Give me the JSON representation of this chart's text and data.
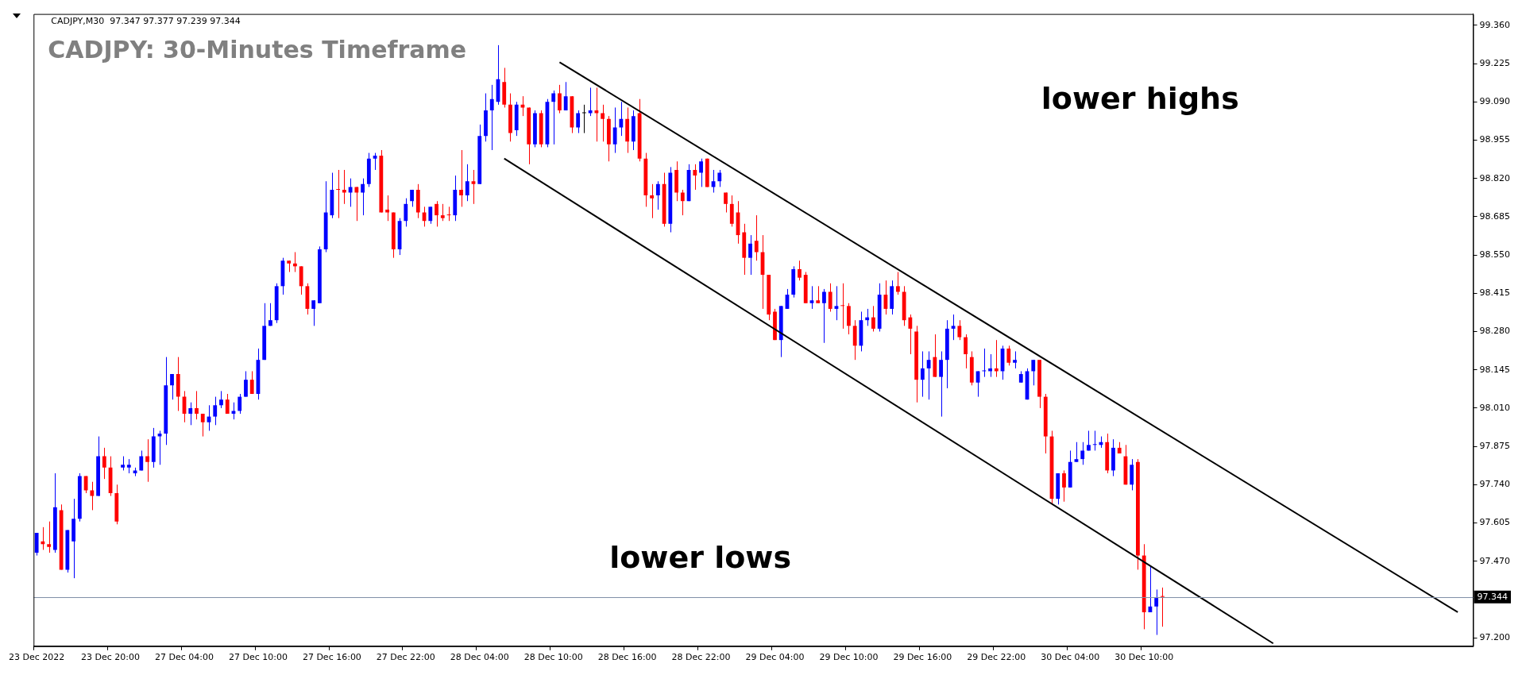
{
  "chart_data": {
    "type": "candlestick",
    "title": "CADJPY: 30-Minutes Timeframe",
    "annotations": [
      "CADJPY,M30  97.347 97.377 97.239 97.344",
      "lower highs",
      "lower lows"
    ],
    "categories": [
      "23 Dec 2022",
      null,
      null,
      null,
      null,
      null,
      null,
      null,
      null,
      null,
      null,
      null,
      "23 Dec 20:00",
      null,
      null,
      null,
      null,
      null,
      null,
      null,
      null,
      null,
      null,
      null,
      "27 Dec 04:00",
      null,
      null,
      null,
      null,
      null,
      null,
      null,
      null,
      null,
      null,
      null,
      "27 Dec 10:00",
      null,
      null,
      null,
      null,
      null,
      null,
      null,
      null,
      null,
      null,
      null,
      "27 Dec 16:00",
      null,
      null,
      null,
      null,
      null,
      null,
      null,
      null,
      null,
      null,
      null,
      "27 Dec 22:00",
      null,
      null,
      null,
      null,
      null,
      null,
      null,
      null,
      null,
      null,
      null,
      "28 Dec 04:00",
      null,
      null,
      null,
      null,
      null,
      null,
      null,
      null,
      null,
      null,
      null,
      "28 Dec 10:00",
      null,
      null,
      null,
      null,
      null,
      null,
      null,
      null,
      null,
      null,
      null,
      "28 Dec 16:00",
      null,
      null,
      null,
      null,
      null,
      null,
      null,
      null,
      null,
      null,
      null,
      "28 Dec 22:00",
      null,
      null,
      null,
      null,
      null,
      null,
      null,
      null,
      null,
      null,
      null,
      "29 Dec 04:00",
      null,
      null,
      null,
      null,
      null,
      null,
      null,
      null,
      null,
      null,
      null,
      "29 Dec 10:00",
      null,
      null,
      null,
      null,
      null,
      null,
      null,
      null,
      null,
      null,
      null,
      "29 Dec 16:00",
      null,
      null,
      null,
      null,
      null,
      null,
      null,
      null,
      null,
      null,
      null,
      "29 Dec 22:00",
      null,
      null,
      null,
      null,
      null,
      null,
      null,
      null,
      null,
      null,
      null,
      "30 Dec 04:00",
      null,
      null,
      null,
      null,
      null,
      null,
      null,
      null,
      null,
      null,
      null,
      "30 Dec 10:00",
      null,
      null,
      null,
      null,
      null,
      null,
      null,
      null,
      null,
      null,
      null,
      null,
      null,
      null,
      null,
      null,
      null,
      null,
      null,
      null,
      null,
      null,
      null,
      null,
      null,
      null,
      null,
      null,
      null,
      null,
      null,
      null,
      null,
      null,
      null,
      null,
      null,
      null,
      null,
      null,
      null,
      null,
      null,
      null,
      null,
      null,
      null,
      null,
      null,
      null,
      null,
      null,
      null
    ],
    "ohlc": [
      [
        97.5,
        97.57,
        97.49,
        97.57
      ],
      [
        97.54,
        97.59,
        97.51,
        97.53
      ],
      [
        97.53,
        97.61,
        97.5,
        97.52
      ],
      [
        97.51,
        97.78,
        97.5,
        97.66
      ],
      [
        97.65,
        97.67,
        97.44,
        97.44
      ],
      [
        97.44,
        97.58,
        97.43,
        97.58
      ],
      [
        97.54,
        97.69,
        97.41,
        97.62
      ],
      [
        97.62,
        97.78,
        97.61,
        97.77
      ],
      [
        97.77,
        97.77,
        97.71,
        97.72
      ],
      [
        97.72,
        97.75,
        97.65,
        97.7
      ],
      [
        97.7,
        97.91,
        97.7,
        97.84
      ],
      [
        97.84,
        97.87,
        97.76,
        97.8
      ],
      [
        97.8,
        97.84,
        97.7,
        97.71
      ],
      [
        97.71,
        97.74,
        97.6,
        97.61
      ],
      [
        97.8,
        97.84,
        97.79,
        97.81
      ],
      [
        97.8,
        97.83,
        97.78,
        97.81
      ],
      [
        97.78,
        97.8,
        97.77,
        97.79
      ],
      [
        97.79,
        97.86,
        97.79,
        97.84
      ],
      [
        97.84,
        97.9,
        97.75,
        97.82
      ],
      [
        97.82,
        97.94,
        97.8,
        97.91
      ],
      [
        97.91,
        97.93,
        97.81,
        97.92
      ],
      [
        97.92,
        98.19,
        97.88,
        98.09
      ],
      [
        98.09,
        98.13,
        98.04,
        98.13
      ],
      [
        98.13,
        98.19,
        98.0,
        98.05
      ],
      [
        98.05,
        98.07,
        97.96,
        97.99
      ],
      [
        97.99,
        98.03,
        97.95,
        98.01
      ],
      [
        98.01,
        98.07,
        97.97,
        97.99
      ],
      [
        97.99,
        97.99,
        97.91,
        97.96
      ],
      [
        97.96,
        98.02,
        97.93,
        97.98
      ],
      [
        97.98,
        98.05,
        97.95,
        98.02
      ],
      [
        98.02,
        98.07,
        98.01,
        98.04
      ],
      [
        98.04,
        98.06,
        97.99,
        97.99
      ],
      [
        97.99,
        98.03,
        97.97,
        98.0
      ],
      [
        98.0,
        98.06,
        97.99,
        98.05
      ],
      [
        98.05,
        98.14,
        98.05,
        98.11
      ],
      [
        98.11,
        98.14,
        98.06,
        98.06
      ],
      [
        98.06,
        98.22,
        98.04,
        98.18
      ],
      [
        98.18,
        98.38,
        98.18,
        98.3
      ],
      [
        98.3,
        98.38,
        98.3,
        98.32
      ],
      [
        98.32,
        98.45,
        98.31,
        98.44
      ],
      [
        98.44,
        98.54,
        98.41,
        98.53
      ],
      [
        98.53,
        98.53,
        98.49,
        98.52
      ],
      [
        98.52,
        98.56,
        98.49,
        98.51
      ],
      [
        98.51,
        98.51,
        98.41,
        98.44
      ],
      [
        98.44,
        98.45,
        98.34,
        98.36
      ],
      [
        98.36,
        98.39,
        98.3,
        98.39
      ],
      [
        98.38,
        98.58,
        98.38,
        98.57
      ],
      [
        98.57,
        98.81,
        98.56,
        98.7
      ],
      [
        98.69,
        98.84,
        98.68,
        98.78
      ],
      [
        98.78,
        98.85,
        98.68,
        98.78
      ],
      [
        98.78,
        98.85,
        98.73,
        98.77
      ],
      [
        98.77,
        98.82,
        98.72,
        98.79
      ],
      [
        98.79,
        98.79,
        98.67,
        98.77
      ],
      [
        98.77,
        98.82,
        98.69,
        98.8
      ],
      [
        98.8,
        98.91,
        98.79,
        98.89
      ],
      [
        98.89,
        98.91,
        98.85,
        98.9
      ],
      [
        98.9,
        98.92,
        98.7,
        98.7
      ],
      [
        98.71,
        98.76,
        98.67,
        98.7
      ],
      [
        98.7,
        98.7,
        98.54,
        98.57
      ],
      [
        98.57,
        98.68,
        98.55,
        98.67
      ],
      [
        98.67,
        98.75,
        98.65,
        98.73
      ],
      [
        98.74,
        98.78,
        98.72,
        98.78
      ],
      [
        98.78,
        98.8,
        98.68,
        98.7
      ],
      [
        98.7,
        98.72,
        98.65,
        98.67
      ],
      [
        98.67,
        98.72,
        98.66,
        98.72
      ],
      [
        98.73,
        98.74,
        98.65,
        98.69
      ],
      [
        98.69,
        98.73,
        98.67,
        98.68
      ],
      [
        98.69,
        98.72,
        98.67,
        98.69
      ],
      [
        98.69,
        98.83,
        98.67,
        98.78
      ],
      [
        98.78,
        98.92,
        98.72,
        98.76
      ],
      [
        98.76,
        98.87,
        98.74,
        98.81
      ],
      [
        98.81,
        98.85,
        98.73,
        98.8
      ],
      [
        98.8,
        99.01,
        98.8,
        98.97
      ],
      [
        98.97,
        99.12,
        98.95,
        99.06
      ],
      [
        99.06,
        99.15,
        98.92,
        99.1
      ],
      [
        99.09,
        99.29,
        99.08,
        99.17
      ],
      [
        99.16,
        99.21,
        99.07,
        99.08
      ],
      [
        99.08,
        99.12,
        98.95,
        98.98
      ],
      [
        98.99,
        99.09,
        98.97,
        99.08
      ],
      [
        99.08,
        99.11,
        99.04,
        99.07
      ],
      [
        99.07,
        99.07,
        98.87,
        98.94
      ],
      [
        98.94,
        99.06,
        98.93,
        99.05
      ],
      [
        99.05,
        99.06,
        98.93,
        98.94
      ],
      [
        98.94,
        99.1,
        98.93,
        99.09
      ],
      [
        99.09,
        99.13,
        98.94,
        99.12
      ],
      [
        99.12,
        99.15,
        99.05,
        99.06
      ],
      [
        99.06,
        99.16,
        99.06,
        99.11
      ],
      [
        99.11,
        99.11,
        98.98,
        99.0
      ],
      [
        99.0,
        99.06,
        98.98,
        99.05
      ],
      [
        99.05,
        99.08,
        98.98,
        99.05
      ],
      [
        99.05,
        99.14,
        99.04,
        99.06
      ],
      [
        99.06,
        99.14,
        98.95,
        99.05
      ],
      [
        99.05,
        99.08,
        98.95,
        99.03
      ],
      [
        99.03,
        99.04,
        98.88,
        98.94
      ],
      [
        98.94,
        99.07,
        98.91,
        99.0
      ],
      [
        99.0,
        99.09,
        98.97,
        99.03
      ],
      [
        99.03,
        99.07,
        98.91,
        98.95
      ],
      [
        98.95,
        99.06,
        98.92,
        99.04
      ],
      [
        99.05,
        99.1,
        98.88,
        98.89
      ],
      [
        98.89,
        98.91,
        98.72,
        98.76
      ],
      [
        98.76,
        98.8,
        98.68,
        98.75
      ],
      [
        98.76,
        98.81,
        98.71,
        98.8
      ],
      [
        98.8,
        98.84,
        98.65,
        98.66
      ],
      [
        98.66,
        98.86,
        98.63,
        98.84
      ],
      [
        98.85,
        98.88,
        98.74,
        98.77
      ],
      [
        98.77,
        98.78,
        98.69,
        98.74
      ],
      [
        98.74,
        98.87,
        98.74,
        98.85
      ],
      [
        98.85,
        98.87,
        98.78,
        98.83
      ],
      [
        98.84,
        98.89,
        98.79,
        98.88
      ],
      [
        98.89,
        98.89,
        98.79,
        98.79
      ],
      [
        98.79,
        98.85,
        98.77,
        98.81
      ],
      [
        98.81,
        98.85,
        98.79,
        98.84
      ],
      [
        98.77,
        98.77,
        98.7,
        98.73
      ],
      [
        98.73,
        98.76,
        98.65,
        98.66
      ],
      [
        98.7,
        98.74,
        98.59,
        98.62
      ],
      [
        98.63,
        98.66,
        98.48,
        98.54
      ],
      [
        98.54,
        98.62,
        98.48,
        98.59
      ],
      [
        98.6,
        98.69,
        98.53,
        98.56
      ],
      [
        98.56,
        98.62,
        98.36,
        98.48
      ],
      [
        98.48,
        98.48,
        98.32,
        98.34
      ],
      [
        98.35,
        98.36,
        98.25,
        98.25
      ],
      [
        98.25,
        98.37,
        98.19,
        98.37
      ],
      [
        98.36,
        98.43,
        98.36,
        98.41
      ],
      [
        98.41,
        98.51,
        98.4,
        98.5
      ],
      [
        98.5,
        98.53,
        98.46,
        98.47
      ],
      [
        98.48,
        98.49,
        98.38,
        98.38
      ],
      [
        98.38,
        98.44,
        98.36,
        98.39
      ],
      [
        98.39,
        98.44,
        98.38,
        98.38
      ],
      [
        98.38,
        98.43,
        98.24,
        98.42
      ],
      [
        98.42,
        98.45,
        98.35,
        98.36
      ],
      [
        98.36,
        98.44,
        98.32,
        98.37
      ],
      [
        98.37,
        98.45,
        98.29,
        98.37
      ],
      [
        98.37,
        98.38,
        98.27,
        98.3
      ],
      [
        98.3,
        98.32,
        98.18,
        98.23
      ],
      [
        98.23,
        98.35,
        98.21,
        98.32
      ],
      [
        98.32,
        98.36,
        98.3,
        98.33
      ],
      [
        98.33,
        98.37,
        98.28,
        98.29
      ],
      [
        98.29,
        98.45,
        98.28,
        98.41
      ],
      [
        98.41,
        98.46,
        98.34,
        98.36
      ],
      [
        98.36,
        98.46,
        98.34,
        98.44
      ],
      [
        98.44,
        98.49,
        98.41,
        98.42
      ],
      [
        98.42,
        98.44,
        98.3,
        98.32
      ],
      [
        98.33,
        98.34,
        98.2,
        98.29
      ],
      [
        98.28,
        98.3,
        98.03,
        98.11
      ],
      [
        98.11,
        98.21,
        98.05,
        98.15
      ],
      [
        98.15,
        98.21,
        98.04,
        98.18
      ],
      [
        98.19,
        98.27,
        98.12,
        98.12
      ],
      [
        98.12,
        98.21,
        97.98,
        98.18
      ],
      [
        98.18,
        98.32,
        98.08,
        98.29
      ],
      [
        98.29,
        98.34,
        98.25,
        98.3
      ],
      [
        98.3,
        98.32,
        98.25,
        98.26
      ],
      [
        98.26,
        98.27,
        98.15,
        98.2
      ],
      [
        98.19,
        98.21,
        98.09,
        98.1
      ],
      [
        98.1,
        98.14,
        98.05,
        98.14
      ],
      [
        98.14,
        98.22,
        98.12,
        98.14
      ],
      [
        98.14,
        98.2,
        98.12,
        98.15
      ],
      [
        98.15,
        98.25,
        98.12,
        98.14
      ],
      [
        98.14,
        98.23,
        98.11,
        98.22
      ],
      [
        98.22,
        98.23,
        98.16,
        98.17
      ],
      [
        98.17,
        98.21,
        98.15,
        98.18
      ],
      [
        98.1,
        98.14,
        98.1,
        98.13
      ],
      [
        98.04,
        98.15,
        98.04,
        98.14
      ],
      [
        98.14,
        98.18,
        98.09,
        98.18
      ],
      [
        98.18,
        98.18,
        98.01,
        98.05
      ],
      [
        98.05,
        98.06,
        97.85,
        97.91
      ],
      [
        97.91,
        97.93,
        97.67,
        97.69
      ],
      [
        97.69,
        97.78,
        97.67,
        97.78
      ],
      [
        97.78,
        97.79,
        97.68,
        97.73
      ],
      [
        97.73,
        97.86,
        97.73,
        97.82
      ],
      [
        97.82,
        97.89,
        97.82,
        97.83
      ],
      [
        97.83,
        97.89,
        97.81,
        97.86
      ],
      [
        97.86,
        97.93,
        97.86,
        97.88
      ],
      [
        97.88,
        97.93,
        97.86,
        97.88
      ],
      [
        97.88,
        97.91,
        97.87,
        97.89
      ],
      [
        97.89,
        97.92,
        97.78,
        97.79
      ],
      [
        97.79,
        97.9,
        97.77,
        97.87
      ],
      [
        97.87,
        97.89,
        97.85,
        97.85
      ],
      [
        97.84,
        97.88,
        97.74,
        97.74
      ],
      [
        97.74,
        97.83,
        97.72,
        97.81
      ],
      [
        97.82,
        97.83,
        97.44,
        97.49
      ],
      [
        97.49,
        97.53,
        97.23,
        97.29
      ],
      [
        97.29,
        97.45,
        97.29,
        97.31
      ],
      [
        97.31,
        97.37,
        97.21,
        97.34
      ],
      [
        97.347,
        97.377,
        97.239,
        97.344
      ],
      null,
      null,
      null,
      null,
      null,
      null,
      null,
      null,
      null,
      null,
      null,
      null,
      null,
      null,
      null,
      null,
      null,
      null,
      null,
      null,
      null,
      null,
      null,
      null,
      null,
      null,
      null,
      null,
      null,
      null,
      null,
      null,
      null,
      null,
      null,
      null,
      null,
      null,
      null,
      null,
      null,
      null,
      null,
      null,
      null,
      null,
      null,
      null,
      null,
      null
    ],
    "colors": [
      "#0000ff",
      "#ff0000",
      "#ff0000",
      "#0000ff",
      "#ff0000",
      "#0000ff",
      "#0000ff",
      "#0000ff",
      "#ff0000",
      "#ff0000",
      "#0000ff",
      "#ff0000",
      "#ff0000",
      "#ff0000",
      "#0000ff",
      "#0000ff",
      "#0000ff",
      "#0000ff",
      "#ff0000",
      "#0000ff",
      "#0000ff",
      "#0000ff",
      "#0000ff",
      "#ff0000",
      "#ff0000",
      "#0000ff",
      "#ff0000",
      "#ff0000",
      "#0000ff",
      "#0000ff",
      "#0000ff",
      "#ff0000",
      "#0000ff",
      "#0000ff",
      "#0000ff",
      "#ff0000",
      "#0000ff",
      "#0000ff",
      "#0000ff",
      "#0000ff",
      "#0000ff",
      "#ff0000",
      "#ff0000",
      "#ff0000",
      "#ff0000",
      "#0000ff",
      "#0000ff",
      "#0000ff",
      "#0000ff",
      "#ff0000",
      "#ff0000",
      "#0000ff",
      "#ff0000",
      "#0000ff",
      "#0000ff",
      "#0000ff",
      "#ff0000",
      "#ff0000",
      "#ff0000",
      "#0000ff",
      "#0000ff",
      "#0000ff",
      "#ff0000",
      "#ff0000",
      "#0000ff",
      "#ff0000",
      "#ff0000",
      "#ff0000",
      "#0000ff",
      "#ff0000",
      "#0000ff",
      "#ff0000",
      "#0000ff",
      "#0000ff",
      "#0000ff",
      "#0000ff",
      "#ff0000",
      "#ff0000",
      "#0000ff",
      "#ff0000",
      "#ff0000",
      "#0000ff",
      "#ff0000",
      "#0000ff",
      "#0000ff",
      "#ff0000",
      "#0000ff",
      "#ff0000",
      "#0000ff",
      "#000000",
      "#0000ff",
      "#ff0000",
      "#ff0000",
      "#ff0000",
      "#0000ff",
      "#0000ff",
      "#ff0000",
      "#0000ff",
      "#ff0000",
      "#ff0000",
      "#ff0000",
      "#0000ff",
      "#ff0000",
      "#0000ff",
      "#ff0000",
      "#ff0000",
      "#0000ff",
      "#ff0000",
      "#0000ff",
      "#ff0000",
      "#0000ff",
      "#0000ff",
      "#ff0000",
      "#ff0000",
      "#ff0000",
      "#ff0000",
      "#0000ff",
      "#ff0000",
      "#ff0000",
      "#ff0000",
      "#ff0000",
      "#0000ff",
      "#0000ff",
      "#0000ff",
      "#ff0000",
      "#ff0000",
      "#0000ff",
      "#ff0000",
      "#0000ff",
      "#ff0000",
      "#0000ff",
      "#ff0000",
      "#ff0000",
      "#ff0000",
      "#0000ff",
      "#0000ff",
      "#ff0000",
      "#0000ff",
      "#ff0000",
      "#0000ff",
      "#ff0000",
      "#ff0000",
      "#ff0000",
      "#ff0000",
      "#0000ff",
      "#0000ff",
      "#ff0000",
      "#0000ff",
      "#0000ff",
      "#0000ff",
      "#ff0000",
      "#ff0000",
      "#ff0000",
      "#0000ff",
      "#0000ff",
      "#0000ff",
      "#ff0000",
      "#0000ff",
      "#ff0000",
      "#0000ff",
      "#0000ff",
      "#0000ff",
      "#0000ff",
      "#ff0000",
      "#ff0000",
      "#ff0000",
      "#0000ff",
      "#ff0000",
      "#0000ff",
      "#0000ff",
      "#0000ff",
      "#0000ff",
      "#0000ff",
      "#0000ff",
      "#ff0000",
      "#0000ff",
      "#ff0000",
      "#ff0000",
      "#0000ff",
      "#ff0000",
      "#ff0000",
      "#0000ff",
      "#0000ff",
      "#ff0000",
      null,
      null,
      null,
      null,
      null,
      null,
      null,
      null,
      null,
      null,
      null,
      null,
      null,
      null,
      null,
      null,
      null,
      null,
      null,
      null,
      null,
      null,
      null,
      null,
      null,
      null,
      null,
      null,
      null,
      null,
      null,
      null,
      null,
      null,
      null,
      null,
      null,
      null,
      null,
      null,
      null,
      null,
      null,
      null,
      null,
      null,
      null,
      null,
      null,
      null
    ],
    "series": [
      {
        "type": "line",
        "color": "#000000",
        "values": [
          null,
          null,
          null,
          null,
          null,
          null,
          null,
          null,
          null,
          null,
          null,
          null,
          null,
          null,
          null,
          null,
          null,
          null,
          null,
          null,
          null,
          null,
          null,
          null,
          null,
          null,
          null,
          null,
          null,
          null,
          null,
          null,
          null,
          null,
          null,
          null,
          null,
          null,
          null,
          null,
          null,
          null,
          null,
          null,
          null,
          null,
          null,
          null,
          null,
          null,
          null,
          null,
          null,
          null,
          null,
          null,
          null,
          null,
          null,
          null,
          null,
          null,
          null,
          null,
          null,
          null,
          null,
          null,
          null,
          null,
          null,
          null,
          null,
          null,
          null,
          null,
          null,
          null,
          null,
          null,
          null,
          null,
          null,
          null,
          null,
          99.23,
          null,
          null,
          null,
          null,
          null,
          null,
          null,
          null,
          null,
          null,
          null,
          null,
          null,
          null,
          null,
          null,
          null,
          null,
          null,
          null,
          null,
          null,
          null,
          null,
          null,
          null,
          null,
          null,
          null,
          null,
          null,
          null,
          null,
          null,
          null,
          null,
          null,
          null,
          null,
          null,
          null,
          null,
          null,
          null,
          null,
          null,
          null,
          null,
          null,
          null,
          null,
          null,
          null,
          null,
          null,
          null,
          null,
          null,
          null,
          null,
          null,
          null,
          null,
          null,
          null,
          null,
          null,
          null,
          null,
          null,
          null,
          null,
          null,
          null,
          null,
          null,
          null,
          null,
          null,
          null,
          null,
          null,
          null,
          null,
          null,
          null,
          null,
          null,
          null,
          null,
          null,
          null,
          null,
          null,
          null,
          null,
          null,
          null,
          null,
          null,
          null,
          null,
          null,
          null,
          null,
          null,
          null,
          null,
          null,
          null,
          null,
          null,
          null,
          null,
          null,
          null,
          null,
          null,
          null,
          null,
          null,
          null,
          null,
          null,
          null,
          null,
          null,
          null,
          null,
          null,
          null,
          null,
          null,
          null,
          null,
          null,
          null,
          null,
          null,
          null,
          null,
          null,
          null,
          null,
          null,
          97.29,
          null,
          null
        ]
      },
      {
        "type": "line",
        "color": "#000000",
        "values": [
          null,
          null,
          null,
          null,
          null,
          null,
          null,
          null,
          null,
          null,
          null,
          null,
          null,
          null,
          null,
          null,
          null,
          null,
          null,
          null,
          null,
          null,
          null,
          null,
          null,
          null,
          null,
          null,
          null,
          null,
          null,
          null,
          null,
          null,
          null,
          null,
          null,
          null,
          null,
          null,
          null,
          null,
          null,
          null,
          null,
          null,
          null,
          null,
          null,
          null,
          null,
          null,
          null,
          null,
          null,
          null,
          null,
          null,
          null,
          null,
          null,
          null,
          null,
          null,
          null,
          null,
          null,
          null,
          null,
          null,
          null,
          null,
          null,
          null,
          null,
          null,
          98.89,
          null,
          null,
          null,
          null,
          null,
          null,
          null,
          null,
          null,
          null,
          null,
          null,
          null,
          null,
          null,
          null,
          null,
          null,
          null,
          null,
          null,
          null,
          null,
          null,
          null,
          null,
          null,
          null,
          null,
          null,
          null,
          null,
          null,
          null,
          null,
          null,
          null,
          null,
          null,
          null,
          null,
          null,
          null,
          null,
          null,
          null,
          null,
          null,
          null,
          null,
          null,
          null,
          null,
          null,
          null,
          null,
          null,
          null,
          null,
          null,
          null,
          null,
          null,
          null,
          null,
          null,
          null,
          null,
          null,
          null,
          null,
          null,
          null,
          null,
          null,
          null,
          null,
          null,
          null,
          null,
          null,
          null,
          null,
          null,
          null,
          null,
          null,
          null,
          null,
          null,
          null,
          null,
          null,
          null,
          null,
          null,
          null,
          null,
          null,
          null,
          null,
          null,
          null,
          null,
          null,
          null,
          null,
          null,
          null,
          null,
          null,
          null,
          null,
          null,
          null,
          null,
          null,
          null,
          null,
          null,
          null,
          null,
          null,
          null,
          97.18,
          null,
          null,
          null,
          null,
          null,
          null,
          null,
          null,
          null,
          null,
          null,
          null,
          null,
          null,
          null,
          null,
          null,
          null,
          null,
          null,
          null,
          null,
          null,
          null,
          null,
          null,
          null,
          null,
          null,
          null,
          null,
          null
        ]
      }
    ],
    "ylim": [
      97.17,
      99.4
    ],
    "yticks": [
      {
        "value": 97.2,
        "label": "97.200"
      },
      {
        "value": 97.47,
        "label": "97.470"
      },
      {
        "value": 97.605,
        "label": "97.605"
      },
      {
        "value": 97.74,
        "label": "97.740"
      },
      {
        "value": 97.875,
        "label": "97.875"
      },
      {
        "value": 98.01,
        "label": "98.010"
      },
      {
        "value": 98.145,
        "label": "98.145"
      },
      {
        "value": 98.28,
        "label": "98.280"
      },
      {
        "value": 98.415,
        "label": "98.415"
      },
      {
        "value": 98.55,
        "label": "98.550"
      },
      {
        "value": 98.685,
        "label": "98.685"
      },
      {
        "value": 98.82,
        "label": "98.820"
      },
      {
        "value": 98.955,
        "label": "98.955"
      },
      {
        "value": 99.09,
        "label": "99.090"
      },
      {
        "value": 99.225,
        "label": "99.225"
      },
      {
        "value": 99.36,
        "label": "99.360"
      }
    ],
    "ref_lines": [
      {
        "axis": "y",
        "value": 97.344,
        "label": "97.344",
        "color": "#8090a8"
      }
    ],
    "grid": false,
    "legend": false
  }
}
